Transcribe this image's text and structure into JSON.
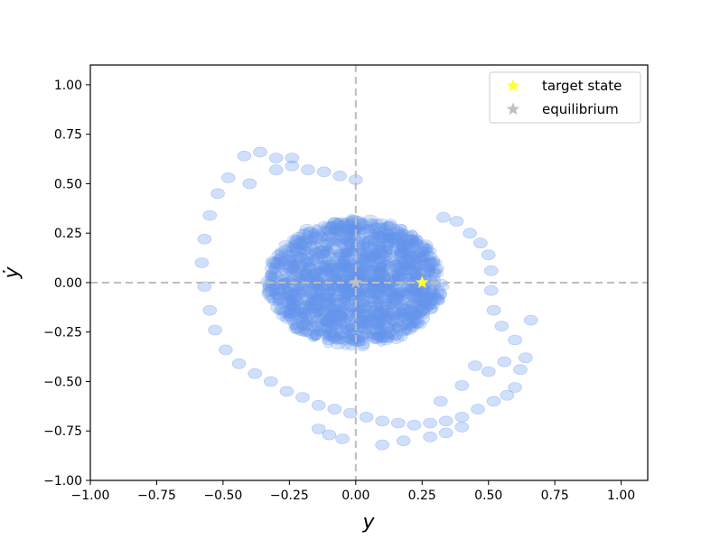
{
  "chart_data": {
    "type": "scatter",
    "title": "",
    "xlabel": "y",
    "ylabel": "ẏ",
    "xlim": [
      -1.0,
      1.1
    ],
    "ylim": [
      -1.0,
      1.1
    ],
    "xticks": [
      "−1.00",
      "−0.75",
      "−0.50",
      "−0.25",
      "0.00",
      "0.25",
      "0.50",
      "0.75",
      "1.00"
    ],
    "xtick_values": [
      -1.0,
      -0.75,
      -0.5,
      -0.25,
      0.0,
      0.25,
      0.5,
      0.75,
      1.0
    ],
    "yticks": [
      "−1.00",
      "−0.75",
      "−0.50",
      "−0.25",
      "0.00",
      "0.25",
      "0.50",
      "0.75",
      "1.00"
    ],
    "ytick_values": [
      -1.0,
      -0.75,
      -0.5,
      -0.25,
      0.0,
      0.25,
      0.5,
      0.75,
      1.0
    ],
    "grid": false,
    "reference_lines": {
      "x": 0.0,
      "y": 0.0,
      "style": "dashed",
      "color": "#bdbdbd"
    },
    "cloud": {
      "color": "#6495ed",
      "opacity": 0.25,
      "center": [
        0.0,
        0.0
      ],
      "radius_x": 0.33,
      "radius_y": 0.32
    },
    "trajectory_points": [
      [
        -0.42,
        0.64
      ],
      [
        -0.36,
        0.66
      ],
      [
        -0.3,
        0.63
      ],
      [
        -0.24,
        0.59
      ],
      [
        -0.18,
        0.57
      ],
      [
        -0.12,
        0.56
      ],
      [
        -0.06,
        0.54
      ],
      [
        0.0,
        0.52
      ],
      [
        -0.48,
        0.53
      ],
      [
        -0.52,
        0.45
      ],
      [
        -0.55,
        0.34
      ],
      [
        -0.57,
        0.22
      ],
      [
        -0.58,
        0.1
      ],
      [
        -0.57,
        -0.02
      ],
      [
        -0.55,
        -0.14
      ],
      [
        -0.53,
        -0.24
      ],
      [
        -0.49,
        -0.34
      ],
      [
        -0.44,
        -0.41
      ],
      [
        -0.38,
        -0.46
      ],
      [
        -0.32,
        -0.5
      ],
      [
        -0.26,
        -0.55
      ],
      [
        -0.2,
        -0.58
      ],
      [
        -0.14,
        -0.62
      ],
      [
        -0.08,
        -0.64
      ],
      [
        -0.02,
        -0.66
      ],
      [
        0.04,
        -0.68
      ],
      [
        0.1,
        -0.7
      ],
      [
        0.16,
        -0.71
      ],
      [
        0.22,
        -0.72
      ],
      [
        0.28,
        -0.71
      ],
      [
        0.34,
        -0.7
      ],
      [
        0.4,
        -0.68
      ],
      [
        0.46,
        -0.64
      ],
      [
        0.52,
        -0.6
      ],
      [
        0.57,
        -0.57
      ],
      [
        0.6,
        -0.53
      ],
      [
        0.62,
        -0.44
      ],
      [
        0.64,
        -0.38
      ],
      [
        0.66,
        -0.19
      ],
      [
        0.6,
        -0.29
      ],
      [
        0.55,
        -0.22
      ],
      [
        0.52,
        -0.14
      ],
      [
        0.51,
        -0.04
      ],
      [
        0.51,
        0.06
      ],
      [
        0.5,
        0.14
      ],
      [
        0.47,
        0.2
      ],
      [
        0.43,
        0.25
      ],
      [
        0.38,
        0.31
      ],
      [
        0.33,
        0.33
      ],
      [
        -0.1,
        -0.77
      ],
      [
        -0.05,
        -0.79
      ],
      [
        0.1,
        -0.82
      ],
      [
        0.18,
        -0.8
      ],
      [
        -0.14,
        -0.74
      ],
      [
        0.28,
        -0.78
      ],
      [
        0.34,
        -0.76
      ],
      [
        0.4,
        -0.73
      ],
      [
        -0.24,
        0.63
      ],
      [
        -0.3,
        0.57
      ],
      [
        -0.4,
        0.5
      ],
      [
        0.45,
        -0.42
      ],
      [
        0.5,
        -0.45
      ],
      [
        0.56,
        -0.4
      ],
      [
        0.4,
        -0.52
      ],
      [
        0.32,
        -0.6
      ]
    ],
    "series": [
      {
        "name": "target state",
        "marker": "star",
        "color": "#ffff33",
        "points": [
          [
            0.25,
            0.0
          ]
        ]
      },
      {
        "name": "equilibrium",
        "marker": "star",
        "color": "#c0c0c0",
        "points": [
          [
            0.0,
            0.0
          ]
        ]
      }
    ],
    "legend": {
      "placement": "top-right",
      "entries": [
        "target state",
        "equilibrium"
      ]
    }
  }
}
